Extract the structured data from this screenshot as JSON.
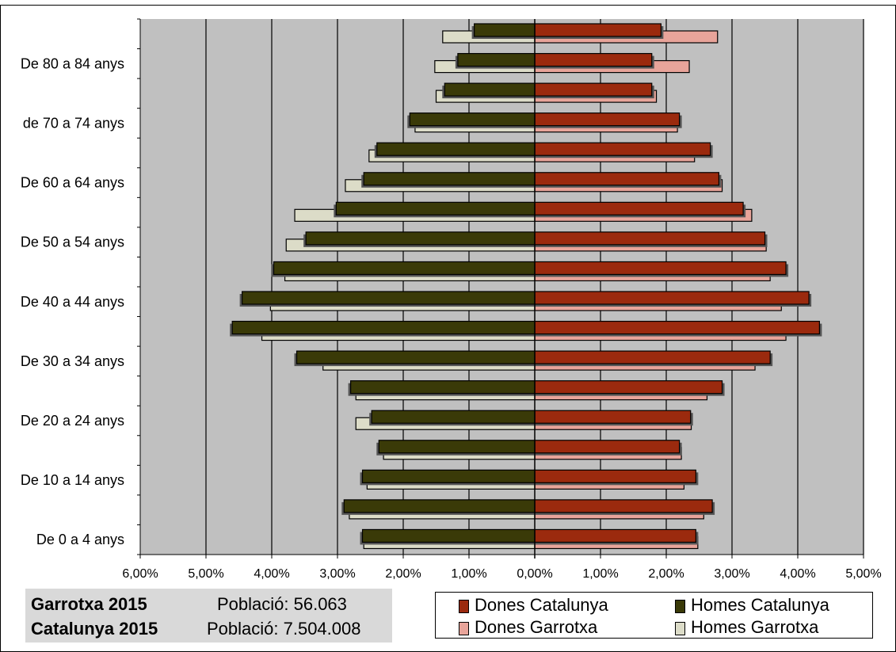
{
  "chart_data": {
    "type": "bar",
    "orientation": "horizontal",
    "title": "",
    "xlim": [
      -6,
      5
    ],
    "x_ticks": [
      "6,00%",
      "5,00%",
      "4,00%",
      "3,00%",
      "2,00%",
      "1,00%",
      "0,00%",
      "1,00%",
      "2,00%",
      "3,00%",
      "4,00%",
      "5,00%"
    ],
    "grid": true,
    "categories_bottom_to_top": [
      "De 0 a 4 anys",
      "",
      "De 10 a 14 anys",
      "",
      "De 20 a 24 anys",
      "",
      "De 30 a 34 anys",
      "",
      "De 40 a 44 anys",
      "",
      "De 50 a 54 anys",
      "",
      "De 60 a 64 anys",
      "",
      "de 70 a 74 anys",
      "",
      "De 80 a 84 anys",
      ""
    ],
    "series": [
      {
        "name": "Dones Catalunya",
        "side": "right",
        "color": "#9b2a0e",
        "values": [
          2.45,
          2.7,
          2.45,
          2.2,
          2.37,
          2.85,
          3.58,
          4.33,
          4.17,
          3.82,
          3.5,
          3.17,
          2.8,
          2.67,
          2.2,
          1.78,
          1.78,
          1.92
        ]
      },
      {
        "name": "Homes Catalunya",
        "side": "left",
        "color": "#3a3a08",
        "values": [
          2.62,
          2.9,
          2.62,
          2.37,
          2.48,
          2.8,
          3.62,
          4.6,
          4.45,
          3.97,
          3.48,
          3.02,
          2.6,
          2.4,
          1.9,
          1.37,
          1.17,
          0.92
        ]
      },
      {
        "name": "Dones Garrotxa",
        "side": "right",
        "color": "#e8a49a",
        "values": [
          2.48,
          2.57,
          2.27,
          2.23,
          2.38,
          2.62,
          3.35,
          3.82,
          3.75,
          3.58,
          3.52,
          3.3,
          2.85,
          2.43,
          2.17,
          1.85,
          2.35,
          2.78
        ]
      },
      {
        "name": "Homes Garrotxa",
        "side": "left",
        "color": "#dcdcc8",
        "values": [
          2.6,
          2.82,
          2.55,
          2.3,
          2.72,
          2.72,
          3.22,
          4.15,
          4.02,
          3.8,
          3.78,
          3.65,
          2.88,
          2.52,
          1.82,
          1.5,
          1.52,
          1.4
        ]
      }
    ]
  },
  "info": {
    "row1_name": "Garrotxa 2015",
    "row1_pop": "Població: 56.063",
    "row2_name": "Catalunya 2015",
    "row2_pop": "Població: 7.504.008"
  },
  "legend": {
    "items": [
      {
        "label": "Dones Catalunya",
        "color": "#9b2a0e"
      },
      {
        "label": "Homes Catalunya",
        "color": "#3a3a08"
      },
      {
        "label": "Dones Garrotxa",
        "color": "#e8a49a"
      },
      {
        "label": "Homes Garrotxa",
        "color": "#dcdcc8"
      }
    ]
  }
}
